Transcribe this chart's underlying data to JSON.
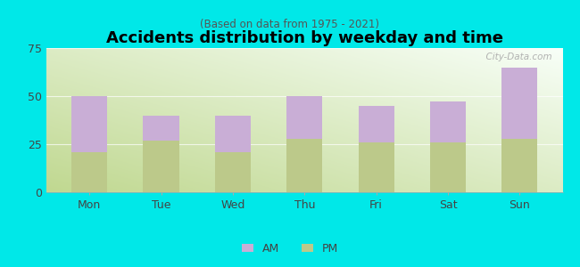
{
  "categories": [
    "Mon",
    "Tue",
    "Wed",
    "Thu",
    "Fri",
    "Sat",
    "Sun"
  ],
  "pm_values": [
    21,
    27,
    21,
    28,
    26,
    26,
    28
  ],
  "am_values": [
    29,
    13,
    19,
    22,
    19,
    21,
    37
  ],
  "am_color": "#c9aed6",
  "pm_color": "#bcc98a",
  "title": "Accidents distribution by weekday and time",
  "subtitle": "(Based on data from 1975 - 2021)",
  "ylim": [
    0,
    75
  ],
  "yticks": [
    0,
    25,
    50,
    75
  ],
  "background_color": "#00e8e8",
  "watermark": "  City-Data.com",
  "bar_width": 0.5,
  "tick_color": "#888888",
  "label_color": "#444444"
}
